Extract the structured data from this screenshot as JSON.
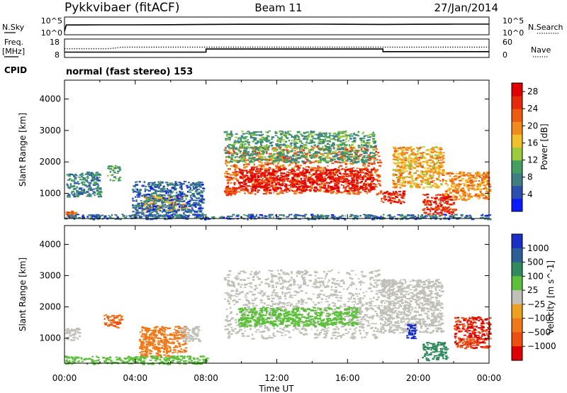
{
  "header": {
    "station": "Pykkvibaer (fitACF)",
    "beam": "Beam 11",
    "date": "27/Jan/2014"
  },
  "left_labels": {
    "nsky": "N.Sky",
    "freq_line1": "Freq.",
    "freq_line2": "[MHz]",
    "cpid": "CPID"
  },
  "right_labels": {
    "nsearch": "N.Search",
    "nave": "Nave"
  },
  "cpid_text": "normal (fast stereo) 153",
  "colors": {
    "noise_line": "#000000",
    "power_scale": [
      "#0a1cff",
      "#2a4fb0",
      "#3d7f82",
      "#44a060",
      "#9dca3a",
      "#f2c02a",
      "#f08a1a",
      "#ee5a10",
      "#e82a0c",
      "#e00000"
    ],
    "velocity_scale": [
      "#1a2fc8",
      "#2c5f9a",
      "#2f8a5c",
      "#5cc03a",
      "#c0c0b8",
      "#f0a020",
      "#f07818",
      "#ee4e10",
      "#e00000"
    ]
  },
  "chart_data": [
    {
      "type": "line",
      "name": "noise-panel",
      "left_axis": {
        "label": "N.Sky",
        "ticks": [
          "10^5",
          "10^0"
        ]
      },
      "right_axis": {
        "label": "N.Search",
        "ticks": [
          "10^5",
          "10^0"
        ]
      },
      "x": [
        0,
        0.1,
        0.5,
        2,
        4,
        6,
        8,
        10,
        12,
        14,
        16,
        18,
        20,
        22,
        24
      ],
      "series": [
        {
          "name": "N.Sky",
          "values": [
            1,
            3.2,
            3.2,
            3.25,
            3.25,
            3.3,
            3.4,
            3.45,
            3.45,
            3.5,
            3.45,
            3.4,
            3.45,
            3.5,
            3.5
          ]
        }
      ]
    },
    {
      "type": "line",
      "name": "freq-nave-panel",
      "left_axis": {
        "label": "Freq. [MHz]",
        "ticks": [
          "18",
          "8"
        ]
      },
      "right_axis": {
        "label": "Nave",
        "ticks": [
          "60",
          "0"
        ]
      },
      "series": [
        {
          "name": "Freq",
          "x": [
            0,
            8,
            8,
            18,
            18,
            24
          ],
          "values": [
            10.5,
            10.5,
            12.5,
            12.5,
            10.8,
            10.8
          ]
        },
        {
          "name": "Nave",
          "x": [
            0,
            2.5,
            3,
            3.2,
            24
          ],
          "values": [
            28,
            28,
            32,
            34,
            34
          ]
        }
      ]
    },
    {
      "type": "heatmap",
      "name": "power-panel",
      "ylabel": "Slant Range [km]",
      "yticks": [
        "1000",
        "2000",
        "3000",
        "4000"
      ],
      "ylim": [
        200,
        4600
      ],
      "xlim": [
        0,
        24
      ],
      "colorbar": {
        "label": "Power [dB]",
        "ticks": [
          "4",
          "8",
          "12",
          "16",
          "20",
          "24",
          "28"
        ],
        "range": [
          0,
          30
        ]
      },
      "regions": [
        {
          "t0": 0.0,
          "t1": 0.6,
          "r0": 250,
          "r1": 450,
          "level": 22
        },
        {
          "t0": 0.1,
          "t1": 2.0,
          "r0": 900,
          "r1": 1700,
          "level": 8
        },
        {
          "t0": 2.4,
          "t1": 3.1,
          "r0": 1400,
          "r1": 1900,
          "level": 9
        },
        {
          "t0": 4.3,
          "t1": 6.8,
          "r0": 450,
          "r1": 950,
          "level": 18
        },
        {
          "t0": 3.8,
          "t1": 7.8,
          "r0": 250,
          "r1": 1400,
          "level": 6
        },
        {
          "t0": 9.0,
          "t1": 9.8,
          "r0": 950,
          "r1": 1250,
          "level": 26
        },
        {
          "t0": 9.0,
          "t1": 17.8,
          "r0": 1000,
          "r1": 2500,
          "level": 22
        },
        {
          "t0": 9.8,
          "t1": 17.5,
          "r0": 1100,
          "r1": 1800,
          "level": 28
        },
        {
          "t0": 9.0,
          "t1": 17.5,
          "r0": 2000,
          "r1": 3000,
          "level": 10
        },
        {
          "t0": 17.8,
          "t1": 19.2,
          "r0": 700,
          "r1": 1100,
          "level": 26
        },
        {
          "t0": 18.5,
          "t1": 21.4,
          "r0": 1200,
          "r1": 2500,
          "level": 18
        },
        {
          "t0": 21.5,
          "t1": 24.0,
          "r0": 800,
          "r1": 1700,
          "level": 20
        },
        {
          "t0": 20.2,
          "t1": 22.0,
          "r0": 300,
          "r1": 1000,
          "level": 26
        },
        {
          "t0": 0.0,
          "t1": 24.0,
          "r0": 200,
          "r1": 350,
          "level": 6
        }
      ]
    },
    {
      "type": "heatmap",
      "name": "velocity-panel",
      "ylabel": "Slant Range [km]",
      "yticks": [
        "1000",
        "2000",
        "3000",
        "4000"
      ],
      "ylim": [
        200,
        4600
      ],
      "xlim": [
        0,
        24
      ],
      "xticks": [
        "00:00",
        "04:00",
        "08:00",
        "12:00",
        "16:00",
        "20:00",
        "00:00"
      ],
      "xlabel": "Time UT",
      "colorbar": {
        "label": "Velocity [m s^-1]",
        "ticks": [
          "1000",
          "500",
          "100",
          "25",
          "−25",
          "−100",
          "−500",
          "−1000"
        ]
      },
      "regions": [
        {
          "t0": 0.0,
          "t1": 0.8,
          "r0": 950,
          "r1": 1350,
          "v": 0
        },
        {
          "t0": 2.2,
          "t1": 3.2,
          "r0": 1350,
          "r1": 1800,
          "v": -300
        },
        {
          "t0": 4.2,
          "t1": 6.8,
          "r0": 400,
          "r1": 1400,
          "v": -200
        },
        {
          "t0": 6.5,
          "t1": 7.6,
          "r0": 900,
          "r1": 1400,
          "v": 0
        },
        {
          "t0": 9.0,
          "t1": 17.8,
          "r0": 1000,
          "r1": 3200,
          "v": 0
        },
        {
          "t0": 9.8,
          "t1": 16.5,
          "r0": 1400,
          "r1": 2000,
          "v": 60
        },
        {
          "t0": 17.8,
          "t1": 21.3,
          "r0": 1200,
          "r1": 2900,
          "v": 0
        },
        {
          "t0": 19.3,
          "t1": 19.8,
          "r0": 1000,
          "r1": 1500,
          "v": 900
        },
        {
          "t0": 20.2,
          "t1": 21.6,
          "r0": 300,
          "r1": 900,
          "v": 200
        },
        {
          "t0": 22.0,
          "t1": 24.0,
          "r0": 700,
          "r1": 1700,
          "v": -700
        },
        {
          "t0": 0.0,
          "t1": 8.0,
          "r0": 200,
          "r1": 450,
          "v": 50
        }
      ]
    }
  ]
}
